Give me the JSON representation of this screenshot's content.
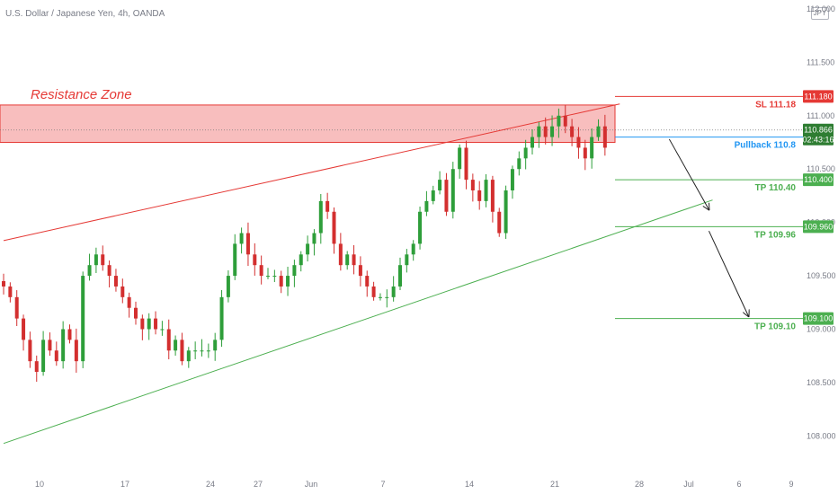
{
  "header": {
    "title": "U.S. Dollar / Japanese Yen, 4h, OANDA",
    "currency_badge": "JPY"
  },
  "colors": {
    "up": "#26a69a",
    "down": "#ef5350",
    "up_candle": "#2e9e3a",
    "down_candle": "#d32f2f",
    "resistance_fill": "#f7b3b3",
    "resistance_line": "#e53935",
    "tp_line": "#4caf50",
    "pullback_line": "#2196f3",
    "sl_line": "#e53935",
    "trend_upper": "#e53935",
    "trend_lower": "#4caf50"
  },
  "chart_data": {
    "type": "candlestick",
    "ylim": [
      107.7,
      112.05
    ],
    "y_ticks": [
      {
        "v": 112.0,
        "label": "112.000"
      },
      {
        "v": 111.5,
        "label": "111.500"
      },
      {
        "v": 111.0,
        "label": "111.000"
      },
      {
        "v": 110.5,
        "label": "110.500"
      },
      {
        "v": 110.0,
        "label": "110.000"
      },
      {
        "v": 109.5,
        "label": "109.500"
      },
      {
        "v": 109.0,
        "label": "109.000"
      },
      {
        "v": 108.5,
        "label": "108.500"
      },
      {
        "v": 108.0,
        "label": "108.000"
      }
    ],
    "x_ticks": [
      "10",
      "17",
      "24",
      "27",
      "Jun",
      "7",
      "14",
      "21",
      "28",
      "Jul",
      "6",
      "9"
    ],
    "resistance_zone": {
      "label": "Resistance Zone",
      "top": 111.1,
      "bottom": 110.75
    },
    "levels": [
      {
        "name": "SL 111.18",
        "value": 111.18,
        "tag": "111.180",
        "color": "#e53935"
      },
      {
        "name": "Pullback 110.8",
        "value": 110.8,
        "tag": "110.800",
        "color": "#2196f3"
      },
      {
        "name": "TP 110.40",
        "value": 110.4,
        "tag": "110.400",
        "color": "#4caf50"
      },
      {
        "name": "TP 109.96",
        "value": 109.96,
        "tag": "109.960",
        "color": "#4caf50"
      },
      {
        "name": "TP 109.10",
        "value": 109.1,
        "tag": "109.100",
        "color": "#4caf50"
      }
    ],
    "current_price": {
      "value": 110.866,
      "tag": "110.866",
      "countdown": "02:43:16"
    },
    "upper_trendline": [
      {
        "bar": 0,
        "price": 109.83
      },
      {
        "bar": 95,
        "price": 111.11
      }
    ],
    "lower_trendline": [
      {
        "bar": 0,
        "price": 107.93
      },
      {
        "bar": 110,
        "price": 110.21
      }
    ],
    "closes": [
      109.4,
      109.3,
      109.1,
      108.9,
      108.7,
      108.6,
      108.9,
      108.8,
      108.7,
      109.0,
      108.9,
      108.7,
      109.5,
      109.6,
      109.7,
      109.6,
      109.5,
      109.4,
      109.3,
      109.2,
      109.1,
      109.0,
      109.1,
      109.0,
      109.0,
      108.8,
      108.9,
      108.7,
      108.8,
      108.8,
      108.8,
      108.8,
      108.9,
      109.3,
      109.5,
      109.8,
      109.9,
      109.7,
      109.6,
      109.5,
      109.5,
      109.5,
      109.4,
      109.5,
      109.6,
      109.7,
      109.8,
      109.9,
      110.2,
      110.1,
      109.8,
      109.6,
      109.7,
      109.6,
      109.5,
      109.4,
      109.3,
      109.3,
      109.3,
      109.4,
      109.6,
      109.7,
      109.8,
      110.1,
      110.2,
      110.3,
      110.4,
      110.1,
      110.5,
      110.7,
      110.4,
      110.3,
      110.2,
      110.4,
      110.1,
      109.9,
      110.3,
      110.5,
      110.6,
      110.7,
      110.8,
      110.9,
      110.8,
      110.9,
      111.0,
      110.9,
      110.8,
      110.7,
      110.6,
      110.8,
      110.9,
      110.7
    ],
    "highs_lows_note": "derived"
  },
  "arrows": [
    {
      "from_bar": 101,
      "from_price": 110.78,
      "to_bar": 107,
      "to_price": 110.12
    },
    {
      "from_bar": 107,
      "from_price": 109.92,
      "to_bar": 113,
      "to_price": 109.12
    }
  ]
}
